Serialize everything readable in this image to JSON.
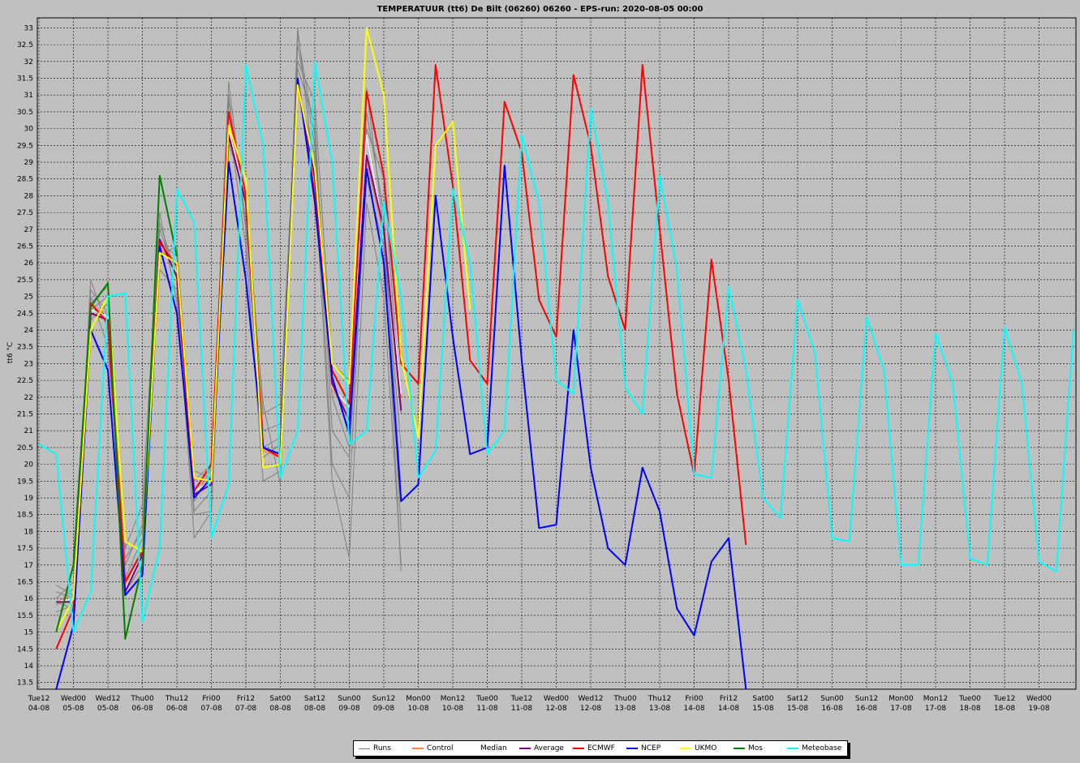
{
  "chart_data": {
    "type": "line",
    "title": "TEMPERATUUR (tt6) De Bilt (06260) 06260 - EPS-run: 2020-08-05 00:00",
    "ylabel": "tt6 °C",
    "ylim": [
      13.3,
      33.3
    ],
    "yticks": [
      13.5,
      14,
      14.5,
      15,
      15.5,
      16,
      16.5,
      17,
      17.5,
      18,
      18.5,
      19,
      19.5,
      20,
      20.5,
      21,
      21.5,
      22,
      22.5,
      23,
      23.5,
      24,
      24.5,
      25,
      25.5,
      26,
      26.5,
      27,
      27.5,
      28,
      28.5,
      29,
      29.5,
      30,
      30.5,
      31,
      31.5,
      32,
      32.5,
      33
    ],
    "x_ticks": [
      {
        "day": "Tue12",
        "date": "04-08"
      },
      {
        "day": "Wed00",
        "date": "05-08"
      },
      {
        "day": "Wed12",
        "date": "05-08"
      },
      {
        "day": "Thu00",
        "date": "06-08"
      },
      {
        "day": "Thu12",
        "date": "06-08"
      },
      {
        "day": "Fri00",
        "date": "07-08"
      },
      {
        "day": "Fri12",
        "date": "07-08"
      },
      {
        "day": "Sat00",
        "date": "08-08"
      },
      {
        "day": "Sat12",
        "date": "08-08"
      },
      {
        "day": "Sun00",
        "date": "09-08"
      },
      {
        "day": "Sun12",
        "date": "09-08"
      },
      {
        "day": "Mon00",
        "date": "10-08"
      },
      {
        "day": "Mon12",
        "date": "10-08"
      },
      {
        "day": "Tue00",
        "date": "11-08"
      },
      {
        "day": "Tue12",
        "date": "11-08"
      },
      {
        "day": "Wed00",
        "date": "12-08"
      },
      {
        "day": "Wed12",
        "date": "12-08"
      },
      {
        "day": "Thu00",
        "date": "13-08"
      },
      {
        "day": "Thu12",
        "date": "13-08"
      },
      {
        "day": "Fri00",
        "date": "14-08"
      },
      {
        "day": "Fri12",
        "date": "14-08"
      },
      {
        "day": "Sat00",
        "date": "15-08"
      },
      {
        "day": "Sat12",
        "date": "15-08"
      },
      {
        "day": "Sun00",
        "date": "16-08"
      },
      {
        "day": "Sun12",
        "date": "16-08"
      },
      {
        "day": "Mon00",
        "date": "17-08"
      },
      {
        "day": "Mon12",
        "date": "17-08"
      },
      {
        "day": "Tue00",
        "date": "18-08"
      },
      {
        "day": "Tue12",
        "date": "18-08"
      },
      {
        "day": "Wed00",
        "date": "19-08"
      }
    ],
    "x_unit_hours": 6,
    "grid": true,
    "legend_position": "bottom",
    "series": [
      {
        "name": "Runs",
        "color": "#808080",
        "style": "ensemble",
        "x_start": 1,
        "values": [
          [
            15.8,
            16.3,
            25.2,
            24.5,
            17.0,
            18.2,
            27.0,
            25.5,
            18.6,
            19.2,
            31.0,
            27.0,
            20.5,
            20.8,
            32.5,
            29.5,
            22.5,
            21.0,
            30.5,
            27.5,
            18.0
          ],
          [
            16.2,
            16.0,
            24.6,
            25.0,
            16.5,
            17.5,
            26.2,
            26.5,
            19.5,
            20.0,
            29.5,
            28.2,
            21.5,
            21.8,
            31.8,
            30.2,
            21.0,
            20.2,
            28.5,
            26.5,
            20.5
          ],
          [
            15.6,
            15.8,
            25.5,
            24.0,
            17.5,
            18.8,
            27.5,
            24.8,
            18.5,
            18.6,
            30.2,
            26.5,
            19.5,
            19.8,
            33.0,
            28.5,
            19.5,
            17.2,
            27.8,
            25.0,
            17.0
          ],
          [
            16.0,
            16.5,
            24.3,
            24.8,
            16.2,
            17.0,
            26.6,
            26.2,
            19.8,
            19.6,
            30.8,
            27.8,
            21.0,
            21.2,
            32.0,
            30.8,
            23.0,
            22.5,
            30.0,
            28.5,
            21.5
          ],
          [
            16.4,
            16.1,
            25.0,
            23.5,
            17.2,
            18.0,
            25.8,
            25.2,
            17.8,
            18.6,
            29.8,
            28.6,
            20.2,
            20.6,
            31.2,
            29.2,
            20.0,
            19.0,
            29.0,
            26.8,
            16.8
          ],
          [
            15.9,
            15.7,
            24.8,
            25.3,
            16.6,
            17.8,
            27.2,
            25.6,
            18.9,
            19.9,
            31.4,
            27.2,
            21.8,
            19.4,
            32.8,
            29.8,
            22.0,
            20.5,
            31.2,
            27.0,
            19.2
          ]
        ]
      },
      {
        "name": "Control",
        "color": "#ff8040",
        "x_start": 1,
        "values": [
          15.9,
          16.1,
          24.7,
          24.5,
          16.4,
          17.5,
          26.5,
          25.8,
          19.3,
          19.6,
          30.1,
          28.0,
          20.4,
          20.2,
          31.2,
          28.3,
          22.2,
          21.6,
          29.0,
          26.8,
          22.0
        ]
      },
      {
        "name": "Median",
        "color": "#ffffff",
        "x_start": 1,
        "values": [
          15.9,
          16.0,
          24.6,
          24.4,
          16.3,
          17.4,
          26.6,
          25.7,
          19.2,
          19.5,
          30.0,
          27.9,
          20.5,
          20.3,
          31.3,
          28.4,
          22.3,
          21.7,
          29.8,
          26.9,
          22.1
        ]
      },
      {
        "name": "Average",
        "color": "#800080",
        "x_start": 1,
        "values": [
          15.9,
          15.9,
          24.5,
          24.3,
          16.2,
          17.3,
          26.7,
          25.6,
          19.1,
          19.4,
          29.8,
          27.8,
          20.5,
          20.3,
          31.4,
          28.5,
          22.4,
          21.3,
          29.2,
          27.0,
          21.6
        ]
      },
      {
        "name": "ECMWF",
        "color": "#ff0000",
        "x_start": 1,
        "values": [
          14.5,
          15.7,
          24.8,
          24.2,
          16.5,
          17.4,
          26.6,
          25.9,
          19.2,
          20.0,
          30.5,
          28.0,
          20.5,
          20.2,
          31.5,
          28.0,
          22.8,
          21.8,
          31.1,
          28.6,
          23.0,
          22.4,
          31.9,
          28.3,
          23.1,
          22.4,
          30.8,
          29.3,
          24.9,
          23.8,
          31.6,
          29.5,
          25.6,
          24.0,
          31.9,
          27.0,
          22.1,
          19.7,
          26.1,
          22.5,
          17.6
        ]
      },
      {
        "name": "NCEP",
        "color": "#0000ff",
        "x_start": 1,
        "values": [
          13.3,
          15.2,
          24.0,
          22.8,
          16.1,
          16.7,
          26.5,
          24.5,
          19.0,
          19.6,
          29.0,
          25.5,
          20.5,
          20.3,
          31.5,
          27.8,
          22.6,
          20.9,
          28.8,
          26.0,
          18.9,
          19.4,
          28.0,
          23.8,
          20.3,
          20.5,
          28.9,
          23.1,
          18.1,
          18.2,
          24.0,
          19.9,
          17.5,
          17.0,
          19.9,
          18.6,
          15.7,
          14.9,
          17.1,
          17.8,
          13.3
        ]
      },
      {
        "name": "UKMO",
        "color": "#ffff00",
        "x_start": 1,
        "values": [
          15.0,
          16.0,
          24.0,
          25.0,
          17.7,
          17.4,
          26.3,
          26.0,
          19.6,
          19.5,
          30.1,
          28.5,
          19.9,
          20.0,
          31.3,
          28.8,
          23.0,
          22.4,
          33.0,
          31.0,
          23.2,
          20.8,
          29.5,
          30.2,
          24.6
        ]
      },
      {
        "name": "Mos",
        "color": "#008000",
        "x_start": 1,
        "values": [
          15.0,
          17.0,
          24.7,
          25.4,
          14.8,
          17.0,
          28.6,
          26.2
        ]
      },
      {
        "name": "Meteobase",
        "color": "#00ffff",
        "x_start": 0,
        "values": [
          20.6,
          20.3,
          15.0,
          16.2,
          25.0,
          25.1,
          15.3,
          17.5,
          28.2,
          27.2,
          17.8,
          19.4,
          31.9,
          29.5,
          19.6,
          21.0,
          32.0,
          29.0,
          20.6,
          21.0,
          27.8,
          25.0,
          19.6,
          20.4,
          28.2,
          26.0,
          20.3,
          21.0,
          29.8,
          27.8,
          22.5,
          22.1,
          30.6,
          27.8,
          22.3,
          21.5,
          28.6,
          25.8,
          19.7,
          19.6,
          25.3,
          22.8,
          19.0,
          18.4,
          24.9,
          23.3,
          17.8,
          17.7,
          24.4,
          22.8,
          17.0,
          17.0,
          23.9,
          22.4,
          17.2,
          17.0,
          24.1,
          22.4,
          17.1,
          16.8,
          24.0
        ]
      }
    ]
  }
}
